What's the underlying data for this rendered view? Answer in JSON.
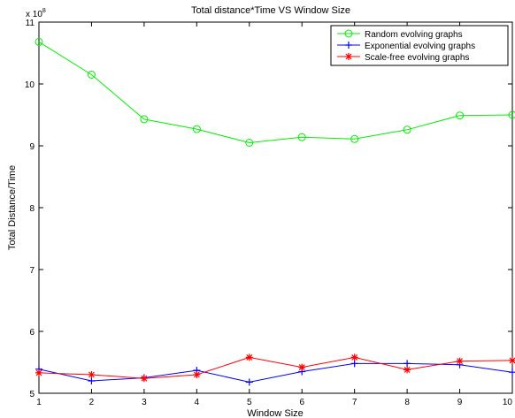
{
  "chart_data": {
    "type": "line",
    "title": "Total distance*Time VS Window Size",
    "xlabel": "Window Size",
    "ylabel": "Total Distance/Time",
    "y_multiplier": "x 10",
    "y_multiplier_exponent": "8",
    "xlim": [
      1,
      10
    ],
    "ylim": [
      5,
      11
    ],
    "x_ticks": [
      1,
      2,
      3,
      4,
      5,
      6,
      7,
      8,
      9,
      10
    ],
    "y_ticks": [
      5,
      6,
      7,
      8,
      9,
      10,
      11
    ],
    "grid": false,
    "legend_position": "top-right",
    "x": [
      1,
      2,
      3,
      4,
      5,
      6,
      7,
      8,
      9,
      10
    ],
    "series": [
      {
        "name": "Random evolving graphs",
        "color": "#00ee00",
        "marker": "circle",
        "values": [
          10.68,
          10.15,
          9.43,
          9.27,
          9.05,
          9.14,
          9.11,
          9.26,
          9.49,
          9.5
        ]
      },
      {
        "name": "Exponential evolving graphs",
        "color": "#0000ff",
        "marker": "plus",
        "values": [
          5.39,
          5.2,
          5.25,
          5.37,
          5.18,
          5.35,
          5.48,
          5.48,
          5.46,
          5.34
        ]
      },
      {
        "name": "Scale-free evolving graphs",
        "color": "#ff0000",
        "marker": "star",
        "values": [
          5.33,
          5.3,
          5.24,
          5.3,
          5.58,
          5.42,
          5.58,
          5.38,
          5.52,
          5.53
        ]
      }
    ]
  }
}
